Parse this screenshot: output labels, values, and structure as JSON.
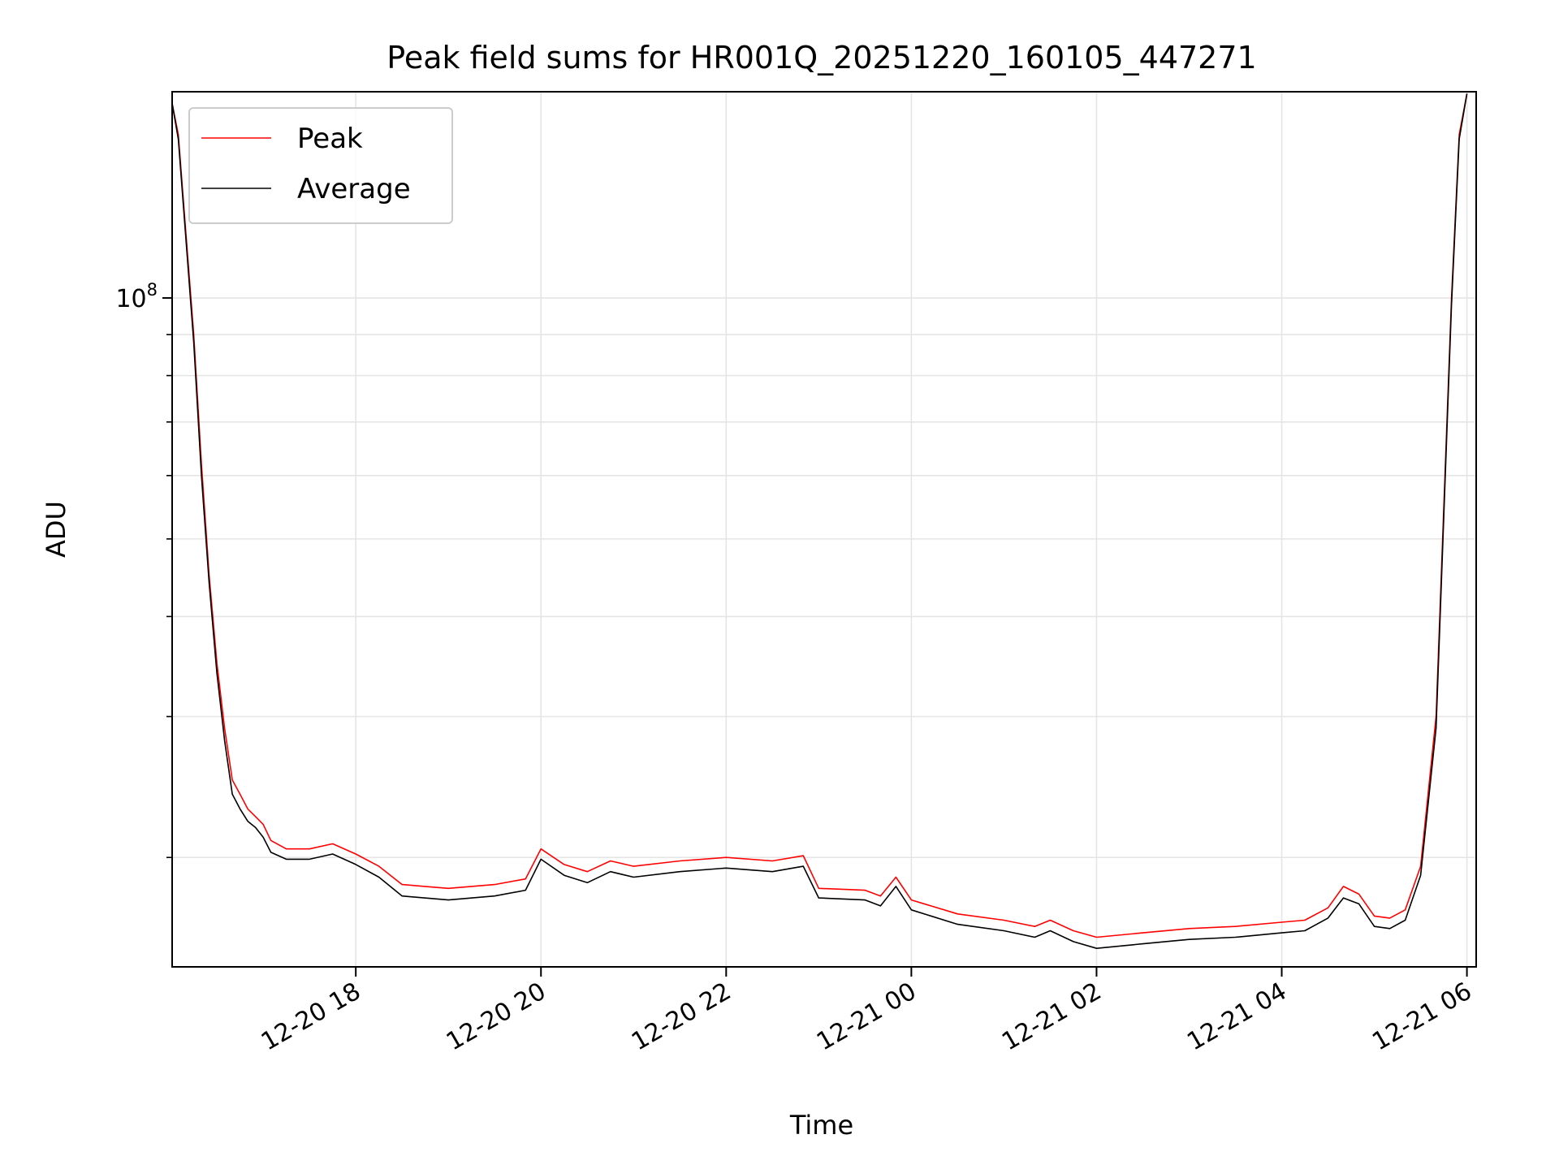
{
  "chart_data": {
    "type": "line",
    "title": "Peak field sums for HR001Q_20251220_160105_447271",
    "xlabel": "Time",
    "ylabel": "ADU",
    "yscale": "log",
    "grid": true,
    "legend_position": "top-left",
    "xlim": [
      "2025-12-20 16:01",
      "2025-12-21 06:06"
    ],
    "ylim": [
      14600000,
      181000000
    ],
    "x_ticks": [
      "12-20 18",
      "12-20 20",
      "12-20 22",
      "12-21 00",
      "12-21 02",
      "12-21 04",
      "12-21 06"
    ],
    "x_tick_values": [
      "2025-12-20 18:00",
      "2025-12-20 20:00",
      "2025-12-20 22:00",
      "2025-12-21 00:00",
      "2025-12-21 02:00",
      "2025-12-21 04:00",
      "2025-12-21 06:00"
    ],
    "y_major_ticks": [
      {
        "value": 100000000,
        "base": "10",
        "exp": "8"
      }
    ],
    "y_minor_tick_values": [
      20000000,
      30000000,
      40000000,
      50000000,
      60000000,
      70000000,
      80000000,
      90000000,
      200000000
    ],
    "x": [
      "2025-12-20 16:01",
      "2025-12-20 16:05",
      "2025-12-20 16:10",
      "2025-12-20 16:15",
      "2025-12-20 16:20",
      "2025-12-20 16:25",
      "2025-12-20 16:30",
      "2025-12-20 16:35",
      "2025-12-20 16:40",
      "2025-12-20 16:45",
      "2025-12-20 16:50",
      "2025-12-20 16:55",
      "2025-12-20 17:00",
      "2025-12-20 17:05",
      "2025-12-20 17:15",
      "2025-12-20 17:30",
      "2025-12-20 17:45",
      "2025-12-20 18:00",
      "2025-12-20 18:15",
      "2025-12-20 18:30",
      "2025-12-20 19:00",
      "2025-12-20 19:30",
      "2025-12-20 19:50",
      "2025-12-20 20:00",
      "2025-12-20 20:15",
      "2025-12-20 20:30",
      "2025-12-20 20:45",
      "2025-12-20 21:00",
      "2025-12-20 21:30",
      "2025-12-20 22:00",
      "2025-12-20 22:30",
      "2025-12-20 22:50",
      "2025-12-20 23:00",
      "2025-12-20 23:30",
      "2025-12-20 23:40",
      "2025-12-20 23:50",
      "2025-12-21 00:00",
      "2025-12-21 00:30",
      "2025-12-21 01:00",
      "2025-12-21 01:20",
      "2025-12-21 01:30",
      "2025-12-21 01:45",
      "2025-12-21 02:00",
      "2025-12-21 02:30",
      "2025-12-21 03:00",
      "2025-12-21 03:30",
      "2025-12-21 04:00",
      "2025-12-21 04:15",
      "2025-12-21 04:30",
      "2025-12-21 04:40",
      "2025-12-21 04:50",
      "2025-12-21 05:00",
      "2025-12-21 05:10",
      "2025-12-21 05:20",
      "2025-12-21 05:30",
      "2025-12-21 05:40",
      "2025-12-21 05:50",
      "2025-12-21 05:55",
      "2025-12-21 06:00"
    ],
    "series": [
      {
        "name": "Peak",
        "color": "#ff0000",
        "values": [
          175000000,
          160000000,
          120000000,
          90000000,
          62000000,
          45000000,
          35000000,
          29000000,
          25000000,
          24000000,
          23000000,
          22500000,
          22000000,
          21000000,
          20500000,
          20500000,
          20800000,
          20200000,
          19500000,
          18500000,
          18300000,
          18500000,
          18800000,
          20500000,
          19600000,
          19200000,
          19800000,
          19500000,
          19800000,
          20000000,
          19800000,
          20100000,
          18300000,
          18200000,
          17900000,
          18900000,
          17700000,
          17000000,
          16700000,
          16400000,
          16700000,
          16200000,
          15900000,
          16100000,
          16300000,
          16400000,
          16600000,
          16700000,
          17300000,
          18400000,
          18000000,
          16900000,
          16800000,
          17200000,
          19500000,
          30000000,
          100000000,
          160000000,
          180000000
        ]
      },
      {
        "name": "Average",
        "color": "#000000",
        "values": [
          175000000,
          158000000,
          118000000,
          88000000,
          60000000,
          44000000,
          34000000,
          28000000,
          24000000,
          23000000,
          22200000,
          21800000,
          21200000,
          20300000,
          19900000,
          19900000,
          20200000,
          19600000,
          18900000,
          17900000,
          17700000,
          17900000,
          18200000,
          19900000,
          19000000,
          18600000,
          19200000,
          18900000,
          19200000,
          19400000,
          19200000,
          19500000,
          17800000,
          17700000,
          17400000,
          18400000,
          17200000,
          16500000,
          16200000,
          15900000,
          16200000,
          15700000,
          15400000,
          15600000,
          15800000,
          15900000,
          16100000,
          16200000,
          16800000,
          17800000,
          17500000,
          16400000,
          16300000,
          16700000,
          19000000,
          29000000,
          98000000,
          158000000,
          180000000
        ]
      }
    ]
  }
}
